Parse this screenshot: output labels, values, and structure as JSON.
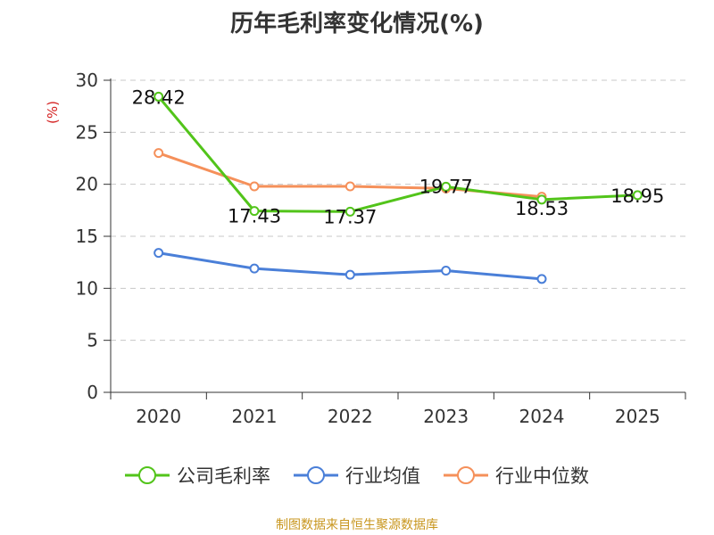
{
  "source_note": "制图数据来自恒生聚源数据库",
  "chart_data": {
    "type": "line",
    "title": "历年毛利率变化情况(%)",
    "ylabel": "(%)",
    "xlabel": "",
    "ylim": [
      0,
      30
    ],
    "yticks": [
      0,
      5,
      10,
      15,
      20,
      25,
      30
    ],
    "categories": [
      "2020",
      "2021",
      "2022",
      "2023",
      "2024",
      "2025"
    ],
    "grid": true,
    "legend_position": "bottom",
    "series": [
      {
        "name": "公司毛利率",
        "color": "#52c41a",
        "values": [
          28.42,
          17.43,
          17.37,
          19.77,
          18.53,
          18.95
        ],
        "labels": [
          "28.42",
          "17.43",
          "17.37",
          "19.77",
          "18.53",
          "18.95"
        ]
      },
      {
        "name": "行业均值",
        "color": "#4a7fd8",
        "values": [
          13.4,
          11.9,
          11.3,
          11.7,
          10.9,
          null
        ]
      },
      {
        "name": "行业中位数",
        "color": "#f5905a",
        "values": [
          23.0,
          19.8,
          19.8,
          19.6,
          18.8,
          null
        ]
      }
    ]
  }
}
